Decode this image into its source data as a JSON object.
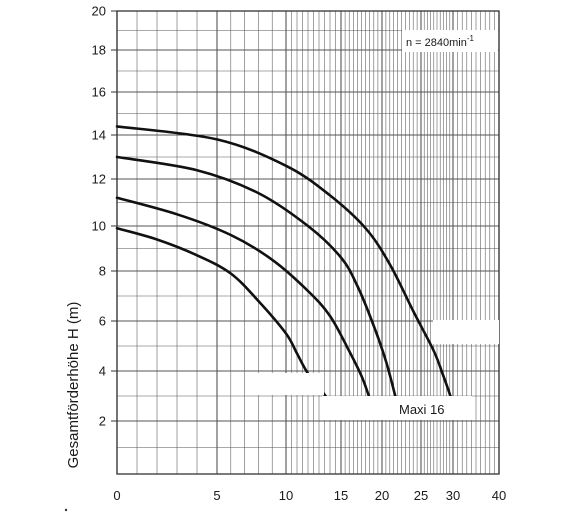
{
  "chart_data": {
    "type": "line",
    "ylabel": "Gesamtförderhöhe  H (m)",
    "xlabel": "",
    "title": "",
    "speed_annotation": {
      "prefix": "n = 2840min",
      "superscript": "-1"
    },
    "series_label": "Maxi 16",
    "x_ticks": [
      0,
      5,
      10,
      15,
      20,
      25,
      30,
      40
    ],
    "y_ticks": [
      2,
      4,
      6,
      8,
      10,
      12,
      14,
      16,
      18,
      20
    ],
    "x_scale": "logarithmic-like (pump-curve paper)",
    "ylim": [
      0,
      20
    ],
    "grid": true,
    "series": [
      {
        "x": [
          0,
          2,
          4,
          6,
          8,
          10,
          11,
          12,
          13.6
        ],
        "y": [
          9.9,
          9.4,
          8.7,
          7.9,
          6.8,
          5.5,
          4.7,
          3.9,
          3.0
        ]
      },
      {
        "x": [
          0,
          3,
          6,
          9,
          12,
          14,
          16,
          17.5,
          18.4
        ],
        "y": [
          11.2,
          10.5,
          9.6,
          8.5,
          7.2,
          6.2,
          4.8,
          3.8,
          3.0
        ]
      },
      {
        "x": [
          0,
          4,
          8,
          12,
          15,
          17,
          19,
          20.5,
          21.7
        ],
        "y": [
          13.0,
          12.4,
          11.4,
          10.0,
          8.6,
          7.4,
          5.8,
          4.4,
          3.0
        ]
      },
      {
        "x": [
          0,
          5,
          10,
          14,
          18,
          21,
          24,
          27,
          28.5,
          29.6
        ],
        "y": [
          14.4,
          13.8,
          12.6,
          11.3,
          9.9,
          8.3,
          6.4,
          4.8,
          3.8,
          3.0
        ]
      }
    ]
  }
}
